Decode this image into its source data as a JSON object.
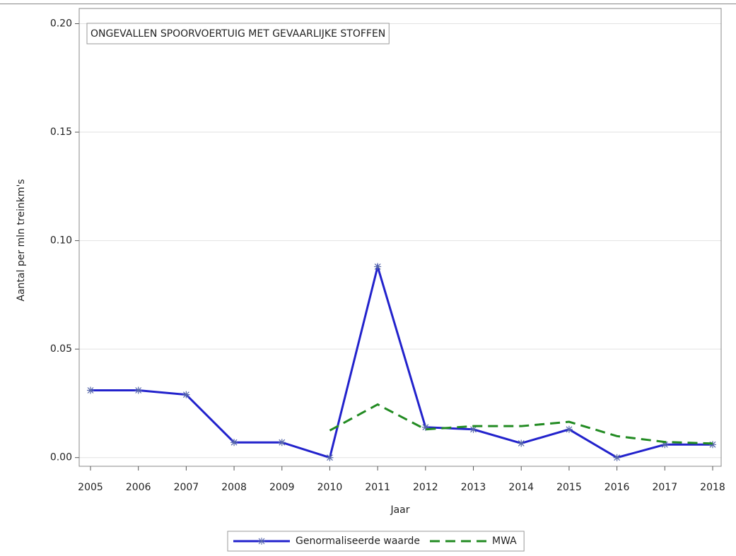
{
  "chart_data": {
    "type": "line",
    "title": "ONGEVALLEN SPOORVOERTUIG MET GEVAARLIJKE STOFFEN",
    "xlabel": "Jaar",
    "ylabel": "Aantal per mln treinkm's",
    "categories": [
      "2005",
      "2006",
      "2007",
      "2008",
      "2009",
      "2010",
      "2011",
      "2012",
      "2013",
      "2014",
      "2015",
      "2016",
      "2017",
      "2018"
    ],
    "series": [
      {
        "name": "Genormaliseerde waarde",
        "color": "#2222cc",
        "dash": false,
        "marker": true,
        "values": [
          0.031,
          0.031,
          0.029,
          0.007,
          0.007,
          0,
          0.088,
          0.014,
          0.013,
          0.0066,
          0.013,
          0,
          0.006,
          0.006
        ]
      },
      {
        "name": "MWA",
        "color": "#228b22",
        "dash": true,
        "marker": false,
        "values": [
          null,
          null,
          null,
          null,
          null,
          0.0125,
          0.0245,
          0.013,
          0.0145,
          0.0145,
          0.0165,
          0.0099,
          0.0072,
          0.0065
        ]
      }
    ],
    "ylim": [
      -0.004,
      0.207
    ],
    "yticks": [
      {
        "value": 0,
        "label": "0.00"
      },
      0.05,
      {
        "value": 0.1,
        "label": "0.10"
      },
      0.15,
      {
        "value": 0.2,
        "label": "0.20"
      }
    ],
    "grid": true,
    "legend": "bottom"
  }
}
